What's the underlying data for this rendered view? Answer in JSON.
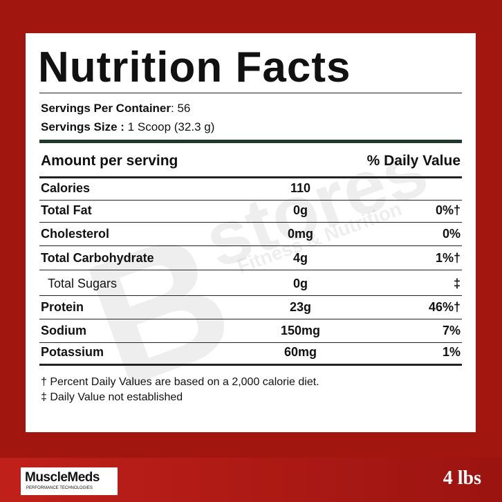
{
  "header": {
    "title": "Nutrition Facts"
  },
  "servings": {
    "per_container_label": "Servings Per Container",
    "per_container_value": ": 56",
    "size_label": "Servings Size :",
    "size_value": "1  Scoop (32.3 g)"
  },
  "table": {
    "header": {
      "amount": "Amount per serving",
      "daily_value": "% Daily Value"
    },
    "rows": [
      {
        "name": "Calories",
        "amount": "110"
      },
      {
        "name": "Total Fat",
        "amount": "0g",
        "daily_value": "0%†"
      },
      {
        "name": "Cholesterol",
        "amount": "0mg",
        "daily_value": "0%"
      },
      {
        "name": "Total Carbohydrate",
        "amount": "4g",
        "daily_value": "1%†"
      },
      {
        "name": "Total Sugars",
        "amount": "0g",
        "daily_value": "‡",
        "indent": true
      },
      {
        "name": "Protein",
        "amount": "23g",
        "daily_value": "46%†"
      },
      {
        "name": "Sodium",
        "amount": "150mg",
        "daily_value": "7%"
      },
      {
        "name": "Potassium",
        "amount": "60mg",
        "daily_value": "1%"
      }
    ]
  },
  "footnotes": [
    "† Percent Daily Values are based on a 2,000 calorie diet.",
    "‡ Daily Value not established"
  ],
  "watermark": {
    "letter": "B",
    "word": "stores",
    "tagline": "Fitness & Nutrition"
  },
  "footer": {
    "brand": "MuscleMeds",
    "brand_tagline": "PERFORMANCE TECHNOLOGIES",
    "weight": "4 lbs"
  }
}
